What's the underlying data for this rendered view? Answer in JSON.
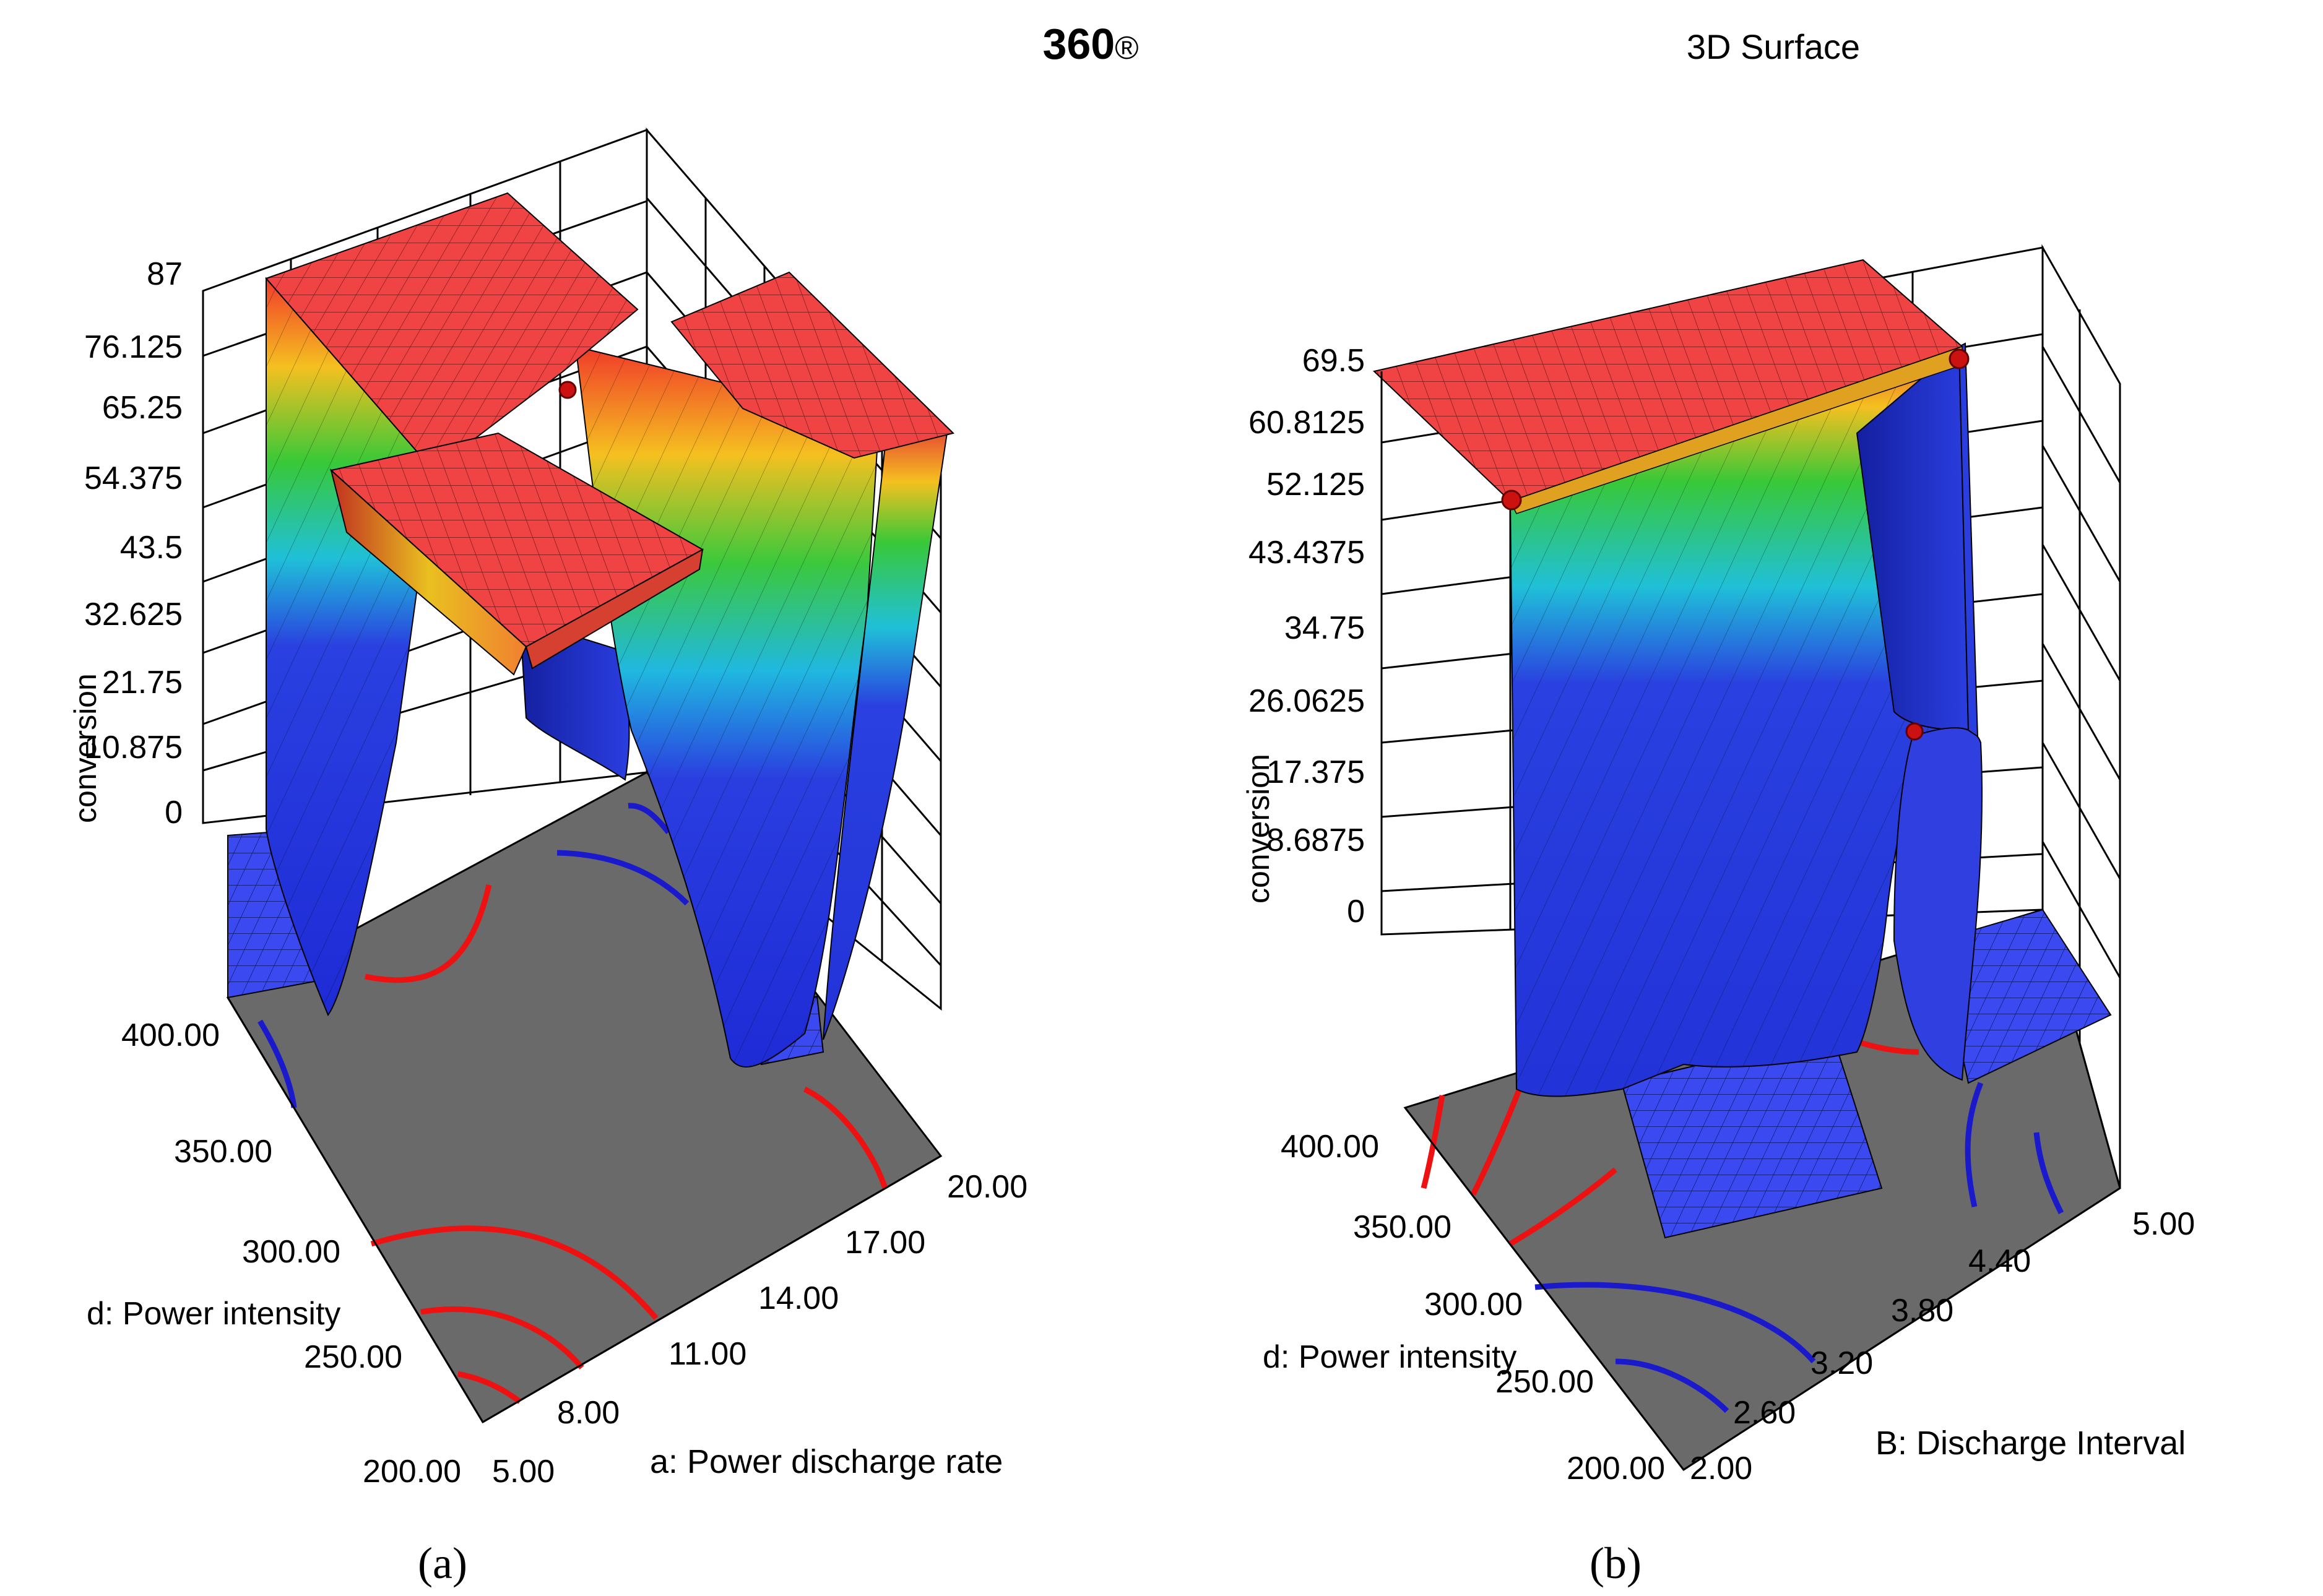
{
  "header": {
    "left_title": "360®",
    "right_title": "3D Surface"
  },
  "colors": {
    "plateau": "#f04040",
    "floor": "#6a6a6a",
    "contour_red": "#ee1111",
    "contour_blue": "#1a1acc",
    "surface_low": "#1e2bd6",
    "surface_mid": "#30c830",
    "surface_high": "#f03a2a"
  },
  "chart_data": [
    {
      "type": "surface3d",
      "panel_label": "(a)",
      "title": "",
      "zlabel": "conversion",
      "xlabel": "a: Power discharge rate",
      "ylabel": "d: Power intensity",
      "z_ticks": [
        "87",
        "76.125",
        "65.25",
        "54.375",
        "43.5",
        "32.625",
        "21.75",
        "10.875",
        "0"
      ],
      "x_ticks": [
        "5.00",
        "8.00",
        "11.00",
        "14.00",
        "17.00",
        "20.00"
      ],
      "y_ticks": [
        "200.00",
        "250.00",
        "300.00",
        "350.00",
        "400.00"
      ],
      "zlim": [
        0,
        87
      ],
      "xlim": [
        5,
        20
      ],
      "ylim": [
        200,
        400
      ],
      "design_points": [
        {
          "x": 14,
          "y": 350,
          "z": 73
        }
      ],
      "surface_color_scale": "blue (low) → cyan → green → yellow → red (high)"
    },
    {
      "type": "surface3d",
      "panel_label": "(b)",
      "title": "3D Surface",
      "zlabel": "conversion",
      "xlabel": "B: Discharge Interval",
      "ylabel": "d: Power intensity",
      "z_ticks": [
        "69.5",
        "60.8125",
        "52.125",
        "43.4375",
        "34.75",
        "26.0625",
        "17.375",
        "8.6875",
        "0"
      ],
      "x_ticks": [
        "2.00",
        "2.60",
        "3.20",
        "3.80",
        "4.40",
        "5.00"
      ],
      "y_ticks": [
        "200.00",
        "250.00",
        "300.00",
        "350.00",
        "400.00"
      ],
      "zlim": [
        0,
        69.5
      ],
      "xlim": [
        2,
        5
      ],
      "ylim": [
        200,
        400
      ],
      "design_points": [
        {
          "x": 2.0,
          "y": 400,
          "z": 69.5
        },
        {
          "x": 5.0,
          "y": 400,
          "z": 69.5
        },
        {
          "x": 4.4,
          "y": 300,
          "z": 26
        }
      ],
      "surface_color_scale": "blue (low) → cyan → green → yellow → red (high)"
    }
  ]
}
